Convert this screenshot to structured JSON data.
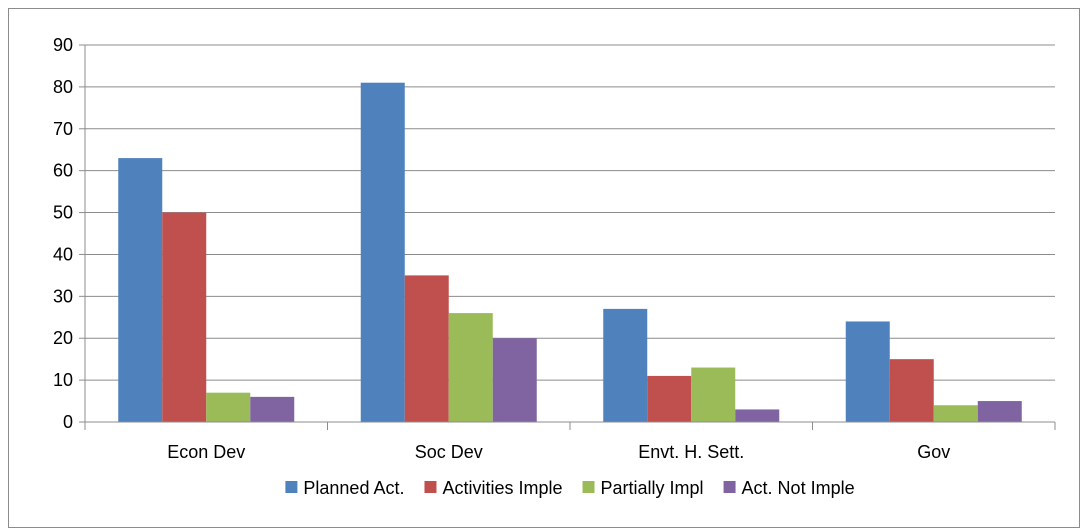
{
  "chart_data": {
    "type": "bar",
    "categories": [
      "Econ Dev",
      "Soc Dev",
      "Envt. H. Sett.",
      "Gov"
    ],
    "series": [
      {
        "name": "Planned Act.",
        "color": "#4F81BD",
        "values": [
          63,
          81,
          27,
          24
        ]
      },
      {
        "name": "Activities Imple",
        "color": "#C0504D",
        "values": [
          50,
          35,
          11,
          15
        ]
      },
      {
        "name": "Partially Impl",
        "color": "#9BBB59",
        "values": [
          7,
          26,
          13,
          4
        ]
      },
      {
        "name": "Act. Not Imple",
        "color": "#8064A2",
        "values": [
          6,
          20,
          3,
          5
        ]
      }
    ],
    "ylim": [
      0,
      90
    ],
    "yticks": [
      0,
      10,
      20,
      30,
      40,
      50,
      60,
      70,
      80,
      90
    ],
    "grid": true,
    "legend": "bottom"
  }
}
